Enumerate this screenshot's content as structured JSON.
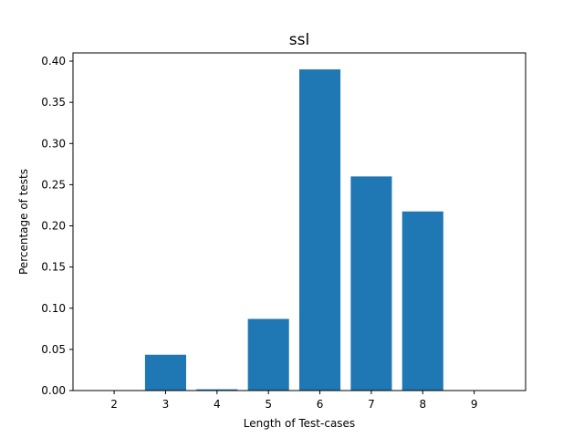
{
  "chart_data": {
    "type": "bar",
    "title": "ssl",
    "xlabel": "Length of Test-cases",
    "ylabel": "Percentage of tests",
    "x_ticks": [
      2,
      3,
      4,
      5,
      6,
      7,
      8,
      9
    ],
    "categories": [
      "3",
      "4",
      "5",
      "6",
      "7",
      "8"
    ],
    "x": [
      3,
      4,
      5,
      6,
      7,
      8
    ],
    "values": [
      0.0435,
      0.0015,
      0.087,
      0.39,
      0.26,
      0.2175
    ],
    "xlim": [
      1.2,
      10.0
    ],
    "ylim": [
      0,
      0.41
    ],
    "y_ticks": [
      "0.00",
      "0.05",
      "0.10",
      "0.15",
      "0.20",
      "0.25",
      "0.30",
      "0.35",
      "0.40"
    ],
    "bar_color": "#1f77b4",
    "grid": false,
    "legend": "none"
  }
}
